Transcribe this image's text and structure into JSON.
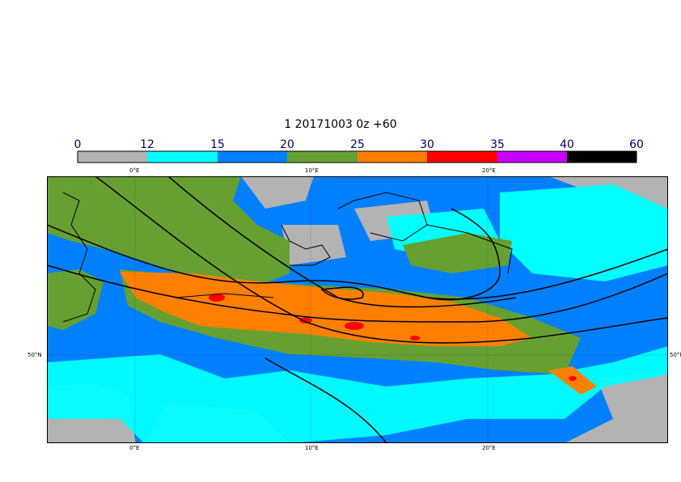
{
  "title": "1 20171003 0z +60",
  "legend": {
    "labels": [
      "0",
      "12",
      "15",
      "20",
      "25",
      "30",
      "35",
      "40",
      "60"
    ],
    "colors": [
      "#b3b3b3",
      "#00ffff",
      "#0080ff",
      "#66a033",
      "#ff8000",
      "#ff0000",
      "#c800ff",
      "#000000"
    ]
  },
  "axes": {
    "top_lon": [
      "0°E",
      "10°E",
      "20°E"
    ],
    "bottom_lon": [
      "0°E",
      "10°E",
      "20°E"
    ],
    "left_lat": "50°N",
    "right_lat": "50°N"
  },
  "map": {
    "colors": {
      "gray": "#b3b3b3",
      "cyan": "#00ffff",
      "blue": "#0080ff",
      "green": "#66a033",
      "orange": "#ff8000",
      "red": "#ff0000"
    }
  }
}
